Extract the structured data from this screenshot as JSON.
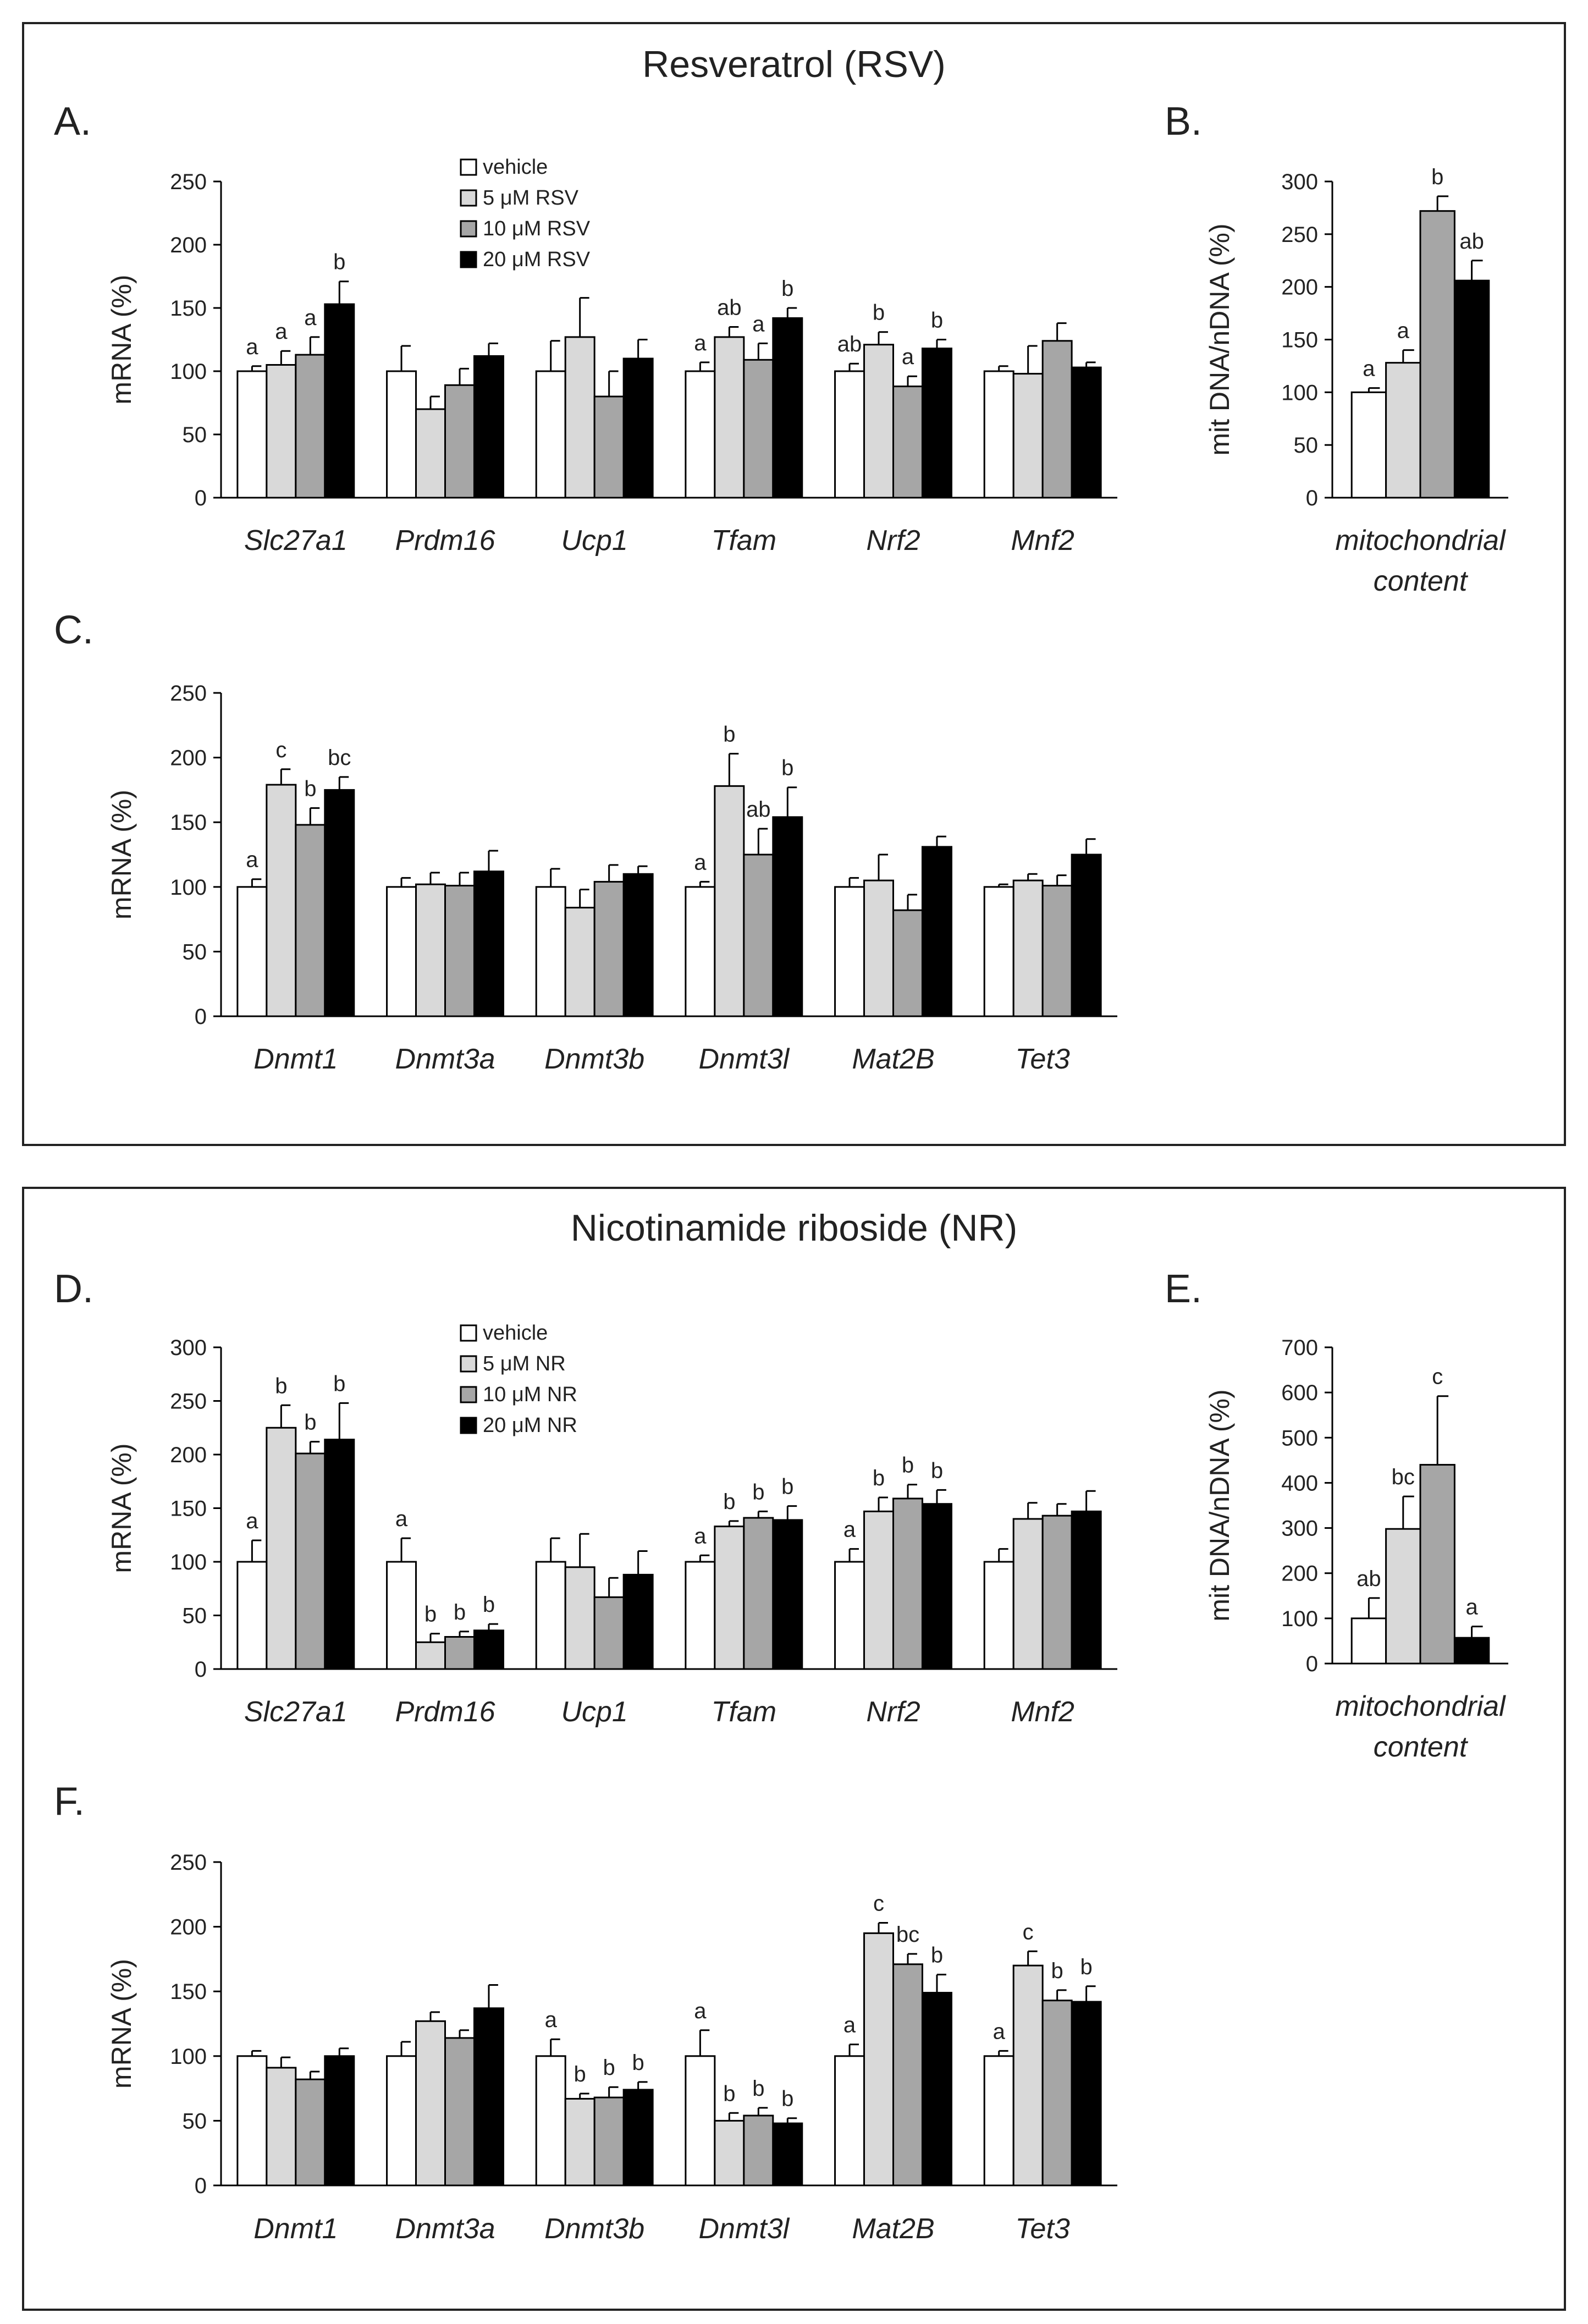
{
  "colors": {
    "vehicle": "#ffffff",
    "low": "#d9d9d9",
    "mid": "#a6a6a6",
    "high": "#000000",
    "axis": "#000000",
    "frame": "#222222",
    "error_bar": "#000000"
  },
  "sections": [
    {
      "title": "Resveratrol (RSV)",
      "legend": [
        "vehicle",
        "5 μM RSV",
        "10 μM RSV",
        "20 μM RSV"
      ]
    },
    {
      "title": "Nicotinamide riboside (NR)",
      "legend": [
        "vehicle",
        "5 μM NR",
        "10 μM NR",
        "20 μM NR"
      ]
    }
  ],
  "chart_data": [
    {
      "panel": "A.",
      "type": "bar",
      "ylabel": "mRNA (%)",
      "ylim": [
        0,
        250
      ],
      "yticks": [
        "0",
        "50",
        "100",
        "150",
        "200",
        "250"
      ],
      "categories": [
        "Slc27a1",
        "Prdm16",
        "Ucp1",
        "Tfam",
        "Nrf2",
        "Mnf2"
      ],
      "series": [
        {
          "name": "vehicle",
          "values": [
            100,
            100,
            100,
            100,
            100,
            100
          ],
          "errors": [
            4,
            20,
            24,
            7,
            6,
            4
          ]
        },
        {
          "name": "5 μM RSV",
          "values": [
            105,
            70,
            127,
            127,
            121,
            98
          ],
          "errors": [
            11,
            10,
            31,
            8,
            10,
            22
          ]
        },
        {
          "name": "10 μM RSV",
          "values": [
            113,
            89,
            80,
            109,
            88,
            124
          ],
          "errors": [
            14,
            13,
            20,
            13,
            8,
            14
          ]
        },
        {
          "name": "20 μM RSV",
          "values": [
            153,
            112,
            110,
            142,
            118,
            103
          ],
          "errors": [
            18,
            10,
            15,
            8,
            7,
            4
          ]
        }
      ],
      "annotations": [
        [
          "a",
          "a",
          "a",
          "b"
        ],
        [
          "",
          "",
          "",
          ""
        ],
        [
          "",
          "",
          "",
          ""
        ],
        [
          "a",
          "ab",
          "a",
          "b"
        ],
        [
          "ab",
          "b",
          "a",
          "b"
        ],
        [
          "",
          "",
          "",
          ""
        ]
      ]
    },
    {
      "panel": "B.",
      "type": "bar",
      "ylabel": "mit DNA/nDNA (%)",
      "ylim": [
        0,
        300
      ],
      "yticks": [
        "0",
        "50",
        "100",
        "150",
        "200",
        "250",
        "300"
      ],
      "categories": [
        "mitochondrial content"
      ],
      "category_lines": [
        [
          "mitochondrial",
          "content"
        ]
      ],
      "series": [
        {
          "name": "vehicle",
          "values": [
            100
          ],
          "errors": [
            4
          ]
        },
        {
          "name": "5 μM RSV",
          "values": [
            128
          ],
          "errors": [
            12
          ]
        },
        {
          "name": "10 μM RSV",
          "values": [
            272
          ],
          "errors": [
            14
          ]
        },
        {
          "name": "20 μM RSV",
          "values": [
            206
          ],
          "errors": [
            19
          ]
        }
      ],
      "annotations": [
        [
          "a",
          "a",
          "b",
          "ab"
        ]
      ]
    },
    {
      "panel": "C.",
      "type": "bar",
      "ylabel": "mRNA  (%)",
      "ylim": [
        0,
        250
      ],
      "yticks": [
        "0",
        "50",
        "100",
        "150",
        "200",
        "250"
      ],
      "categories": [
        "Dnmt1",
        "Dnmt3a",
        "Dnmt3b",
        "Dnmt3l",
        "Mat2B",
        "Tet3"
      ],
      "series": [
        {
          "name": "vehicle",
          "values": [
            100,
            100,
            100,
            100,
            100,
            100
          ],
          "errors": [
            6,
            7,
            14,
            4,
            7,
            2
          ]
        },
        {
          "name": "5 μM RSV",
          "values": [
            179,
            102,
            84,
            178,
            105,
            105
          ],
          "errors": [
            12,
            9,
            14,
            25,
            20,
            5
          ]
        },
        {
          "name": "10 μM RSV",
          "values": [
            148,
            101,
            104,
            125,
            82,
            101
          ],
          "errors": [
            13,
            10,
            13,
            20,
            12,
            8
          ]
        },
        {
          "name": "20 μM RSV",
          "values": [
            175,
            112,
            110,
            154,
            131,
            125
          ],
          "errors": [
            10,
            16,
            6,
            23,
            8,
            12
          ]
        }
      ],
      "annotations": [
        [
          "a",
          "c",
          "b",
          "bc"
        ],
        [
          "",
          "",
          "",
          ""
        ],
        [
          "",
          "",
          "",
          ""
        ],
        [
          "a",
          "b",
          "ab",
          "b"
        ],
        [
          "",
          "",
          "",
          ""
        ],
        [
          "",
          "",
          "",
          ""
        ]
      ]
    },
    {
      "panel": "D.",
      "type": "bar",
      "ylabel": "mRNA (%)",
      "ylim": [
        0,
        300
      ],
      "yticks": [
        "0",
        "50",
        "100",
        "150",
        "200",
        "250",
        "300"
      ],
      "categories": [
        "Slc27a1",
        "Prdm16",
        "Ucp1",
        "Tfam",
        "Nrf2",
        "Mnf2"
      ],
      "series": [
        {
          "name": "vehicle",
          "values": [
            100,
            100,
            100,
            100,
            100,
            100
          ],
          "errors": [
            20,
            22,
            22,
            6,
            12,
            12
          ]
        },
        {
          "name": "5 μM NR",
          "values": [
            225,
            25,
            95,
            133,
            147,
            140
          ],
          "errors": [
            21,
            8,
            31,
            5,
            13,
            15
          ]
        },
        {
          "name": "10 μM NR",
          "values": [
            201,
            30,
            67,
            141,
            159,
            143
          ],
          "errors": [
            11,
            5,
            18,
            6,
            13,
            11
          ]
        },
        {
          "name": "20 μM NR",
          "values": [
            214,
            36,
            88,
            139,
            154,
            147
          ],
          "errors": [
            34,
            6,
            22,
            13,
            13,
            19
          ]
        }
      ],
      "annotations": [
        [
          "a",
          "b",
          "b",
          "b"
        ],
        [
          "a",
          "b",
          "b",
          "b"
        ],
        [
          "",
          "",
          "",
          ""
        ],
        [
          "a",
          "b",
          "b",
          "b"
        ],
        [
          "a",
          "b",
          "b",
          "b"
        ],
        [
          "",
          "",
          "",
          ""
        ]
      ]
    },
    {
      "panel": "E.",
      "type": "bar",
      "ylabel": "mit DNA/nDNA (%)",
      "ylim": [
        0,
        700
      ],
      "yticks": [
        "0",
        "100",
        "200",
        "300",
        "400",
        "500",
        "600",
        "700"
      ],
      "categories": [
        "mitochondrial content"
      ],
      "category_lines": [
        [
          "mitochondrial",
          "content"
        ]
      ],
      "series": [
        {
          "name": "vehicle",
          "values": [
            100
          ],
          "errors": [
            45
          ]
        },
        {
          "name": "5 μM NR",
          "values": [
            298
          ],
          "errors": [
            72
          ]
        },
        {
          "name": "10 μM NR",
          "values": [
            440
          ],
          "errors": [
            152
          ]
        },
        {
          "name": "20 μM NR",
          "values": [
            57
          ],
          "errors": [
            25
          ]
        }
      ],
      "annotations": [
        [
          "ab",
          "bc",
          "c",
          "a"
        ]
      ]
    },
    {
      "panel": "F.",
      "type": "bar",
      "ylabel": "mRNA (%)",
      "ylim": [
        0,
        250
      ],
      "yticks": [
        "0",
        "50",
        "100",
        "150",
        "200",
        "250"
      ],
      "categories": [
        "Dnmt1",
        "Dnmt3a",
        "Dnmt3b",
        "Dnmt3l",
        "Mat2B",
        "Tet3"
      ],
      "series": [
        {
          "name": "vehicle",
          "values": [
            100,
            100,
            100,
            100,
            100,
            100
          ],
          "errors": [
            4,
            11,
            13,
            20,
            9,
            4
          ]
        },
        {
          "name": "5 μM NR",
          "values": [
            91,
            127,
            67,
            50,
            195,
            170
          ],
          "errors": [
            8,
            7,
            4,
            6,
            8,
            11
          ]
        },
        {
          "name": "10 μM NR",
          "values": [
            82,
            114,
            68,
            54,
            171,
            143
          ],
          "errors": [
            6,
            6,
            8,
            6,
            8,
            8
          ]
        },
        {
          "name": "20 μM NR",
          "values": [
            100,
            137,
            74,
            48,
            149,
            142
          ],
          "errors": [
            6,
            18,
            6,
            4,
            14,
            12
          ]
        }
      ],
      "annotations": [
        [
          "",
          "",
          "",
          ""
        ],
        [
          "",
          "",
          "",
          ""
        ],
        [
          "a",
          "b",
          "b",
          "b"
        ],
        [
          "a",
          "b",
          "b",
          "b"
        ],
        [
          "a",
          "c",
          "bc",
          "b"
        ],
        [
          "a",
          "c",
          "b",
          "b"
        ]
      ]
    }
  ]
}
